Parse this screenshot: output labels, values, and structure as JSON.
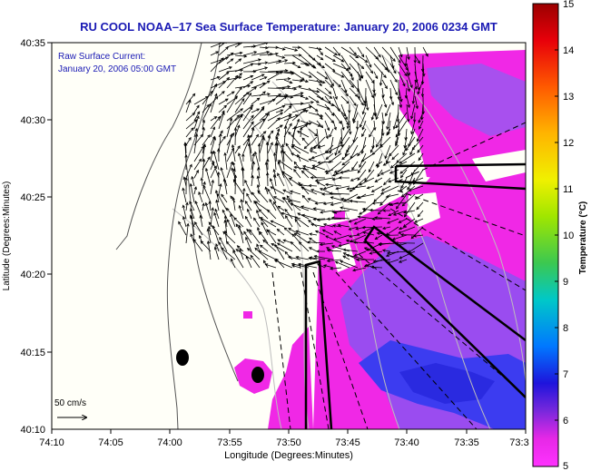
{
  "title": "RU COOL  NOAA–17  Sea Surface Temperature:  January 20, 2006 0234 GMT",
  "current_label": {
    "line1": "Raw Surface Current:",
    "line2": "January 20, 2006 05:00 GMT"
  },
  "scale_arrow_label": "50 cm/s",
  "x_axis": {
    "label": "Longitude (Degrees:Minutes)",
    "ticks": [
      "74:10",
      "74:05",
      "74:00",
      "73:55",
      "73:50",
      "73:45",
      "73:40",
      "73:35",
      "73:3"
    ]
  },
  "y_axis": {
    "label": "Latitude (Degrees:Minutes)",
    "ticks": [
      "40:35",
      "40:30",
      "40:25",
      "40:20",
      "40:15",
      "40:10"
    ]
  },
  "colorbar": {
    "label": "Temperature (°C)",
    "ticks": [
      "15",
      "14",
      "13",
      "12",
      "11",
      "10",
      "9",
      "8",
      "7",
      "6",
      "5"
    ],
    "colors": [
      "#9b0000",
      "#e8000a",
      "#ff5a00",
      "#ffb400",
      "#f0f000",
      "#a0e600",
      "#3cc850",
      "#00c8c8",
      "#0078ff",
      "#1e14dc",
      "#7828dc",
      "#e628e6",
      "#ff32ff"
    ]
  },
  "colors": {
    "title": "#1a1ab4",
    "land": "#fffff8",
    "sst_warm": "#f028e6",
    "sst_mid": "#9a4cf0",
    "sst_cool": "#3c3cf0",
    "current_arrows": "#000000"
  }
}
